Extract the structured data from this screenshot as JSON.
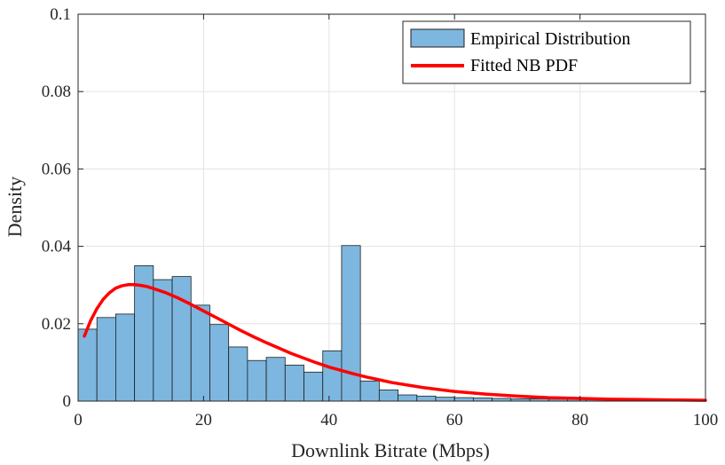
{
  "chart_data": {
    "type": "bar",
    "xlabel": "Downlink Bitrate (Mbps)",
    "ylabel": "Density",
    "xlim": [
      0,
      100
    ],
    "ylim": [
      0,
      0.1
    ],
    "grid": true,
    "legend_position": "top-right",
    "x_ticks": [
      "0",
      "20",
      "40",
      "60",
      "80",
      "100"
    ],
    "y_ticks": [
      "0",
      "0.02",
      "0.04",
      "0.06",
      "0.08",
      "0.1"
    ],
    "colors": {
      "bar_fill": "#7db6de",
      "bar_edge": "#1f1f1f",
      "fit_line": "#ff0000",
      "grid": "#e3e3e3",
      "axis": "#262626"
    },
    "series": [
      {
        "name": "Empirical Distribution",
        "type": "histogram",
        "bin_width": 3,
        "bin_start": 0,
        "values": [
          0.0186,
          0.0216,
          0.0225,
          0.035,
          0.0314,
          0.0322,
          0.0248,
          0.0198,
          0.014,
          0.0105,
          0.0113,
          0.0093,
          0.0075,
          0.013,
          0.0402,
          0.0052,
          0.0029,
          0.0016,
          0.0013,
          0.001,
          0.0009,
          0.0008,
          0.0007,
          0.0006,
          0.0006,
          0.0005,
          0.0005,
          0.0004,
          0.0004,
          0.0003,
          0.0003,
          0.0003,
          0.0002,
          0.0001
        ]
      },
      {
        "name": "Fitted NB PDF",
        "type": "line",
        "x": [
          1,
          2,
          3,
          4,
          5,
          6,
          7,
          8,
          9,
          10,
          11,
          12,
          14,
          16,
          18,
          20,
          22,
          24,
          26,
          28,
          30,
          32,
          34,
          36,
          38,
          40,
          42,
          44,
          46,
          48,
          50,
          55,
          60,
          65,
          70,
          75,
          80,
          85,
          90,
          95,
          100
        ],
        "y": [
          0.0168,
          0.0208,
          0.0239,
          0.0263,
          0.028,
          0.0292,
          0.0298,
          0.0301,
          0.0301,
          0.0299,
          0.0296,
          0.0291,
          0.028,
          0.0266,
          0.025,
          0.0233,
          0.0216,
          0.0199,
          0.0182,
          0.0166,
          0.0151,
          0.0137,
          0.0123,
          0.0111,
          0.0099,
          0.0088,
          0.0079,
          0.007,
          0.0062,
          0.0055,
          0.0048,
          0.0035,
          0.0025,
          0.0018,
          0.0013,
          0.0009,
          0.0007,
          0.0005,
          0.0004,
          0.0003,
          0.0002
        ]
      }
    ]
  }
}
